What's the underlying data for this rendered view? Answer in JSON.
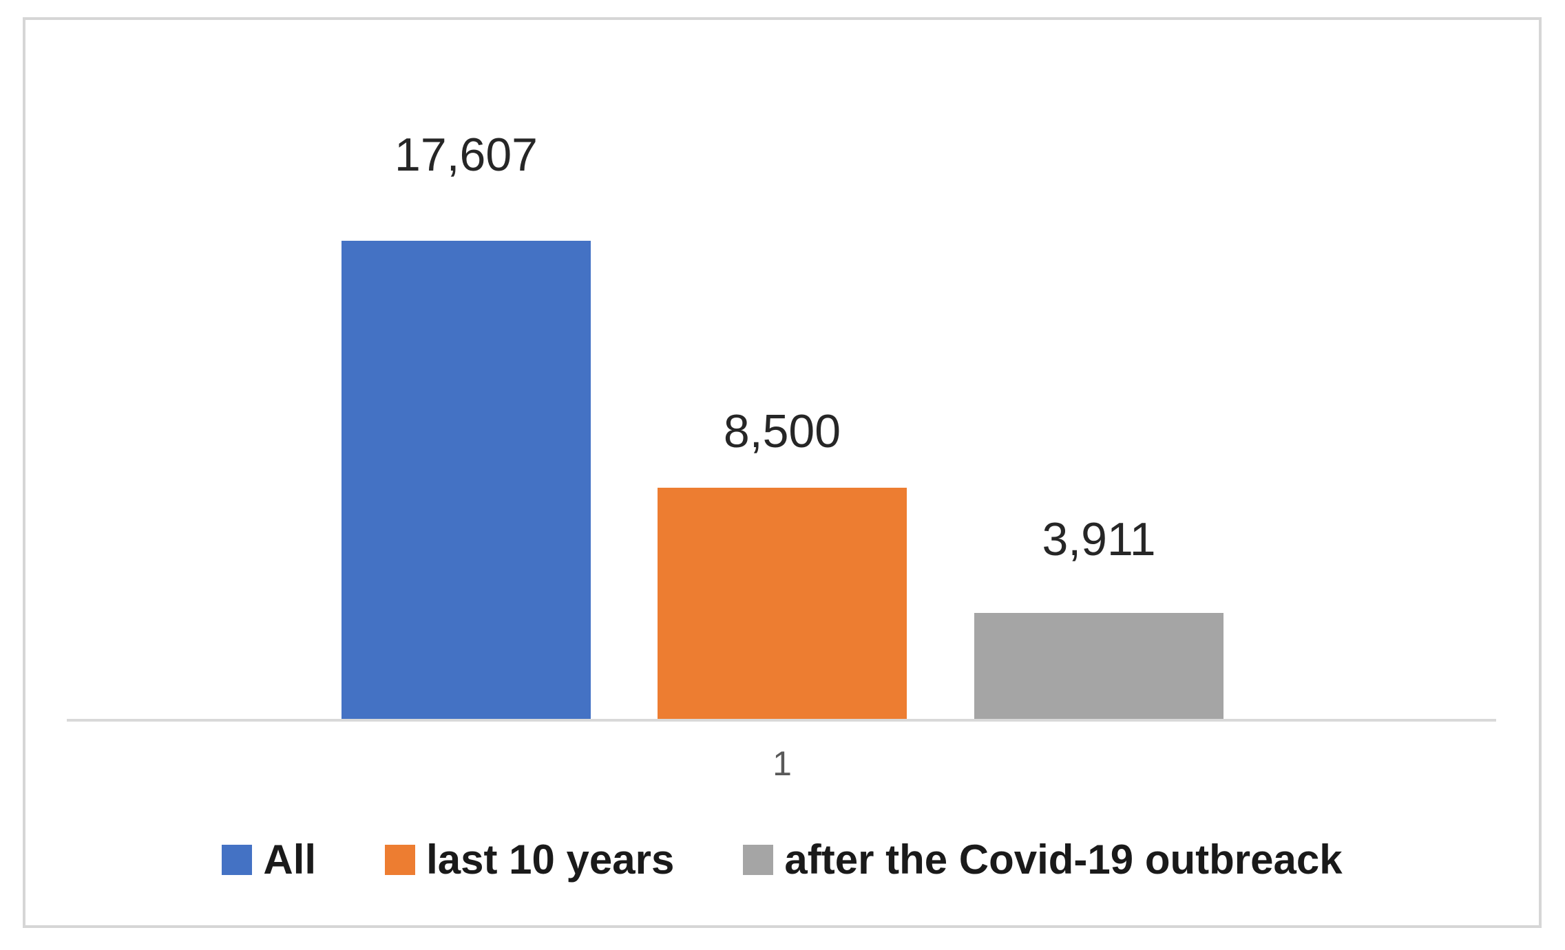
{
  "chart_data": {
    "type": "bar",
    "categories": [
      "1"
    ],
    "series": [
      {
        "name": "All",
        "values": [
          17607
        ],
        "label": "17,607",
        "color": "#4472C4"
      },
      {
        "name": "last 10 years",
        "values": [
          8500
        ],
        "label": "8,500",
        "color": "#ED7D31"
      },
      {
        "name": "after the Covid-19 outbreack",
        "values": [
          3911
        ],
        "label": "3,911",
        "color": "#A5A5A5"
      }
    ],
    "title": "",
    "xlabel": "",
    "ylabel": "",
    "ylim": [
      0,
      17607
    ],
    "grid": false,
    "legend_position": "bottom",
    "axis_color": "#D9D9D9",
    "frame_color": "#D6D6D6",
    "tick_color": "#595959",
    "value_label_color": "#262626",
    "legend_text_color": "#1A1A1A"
  }
}
